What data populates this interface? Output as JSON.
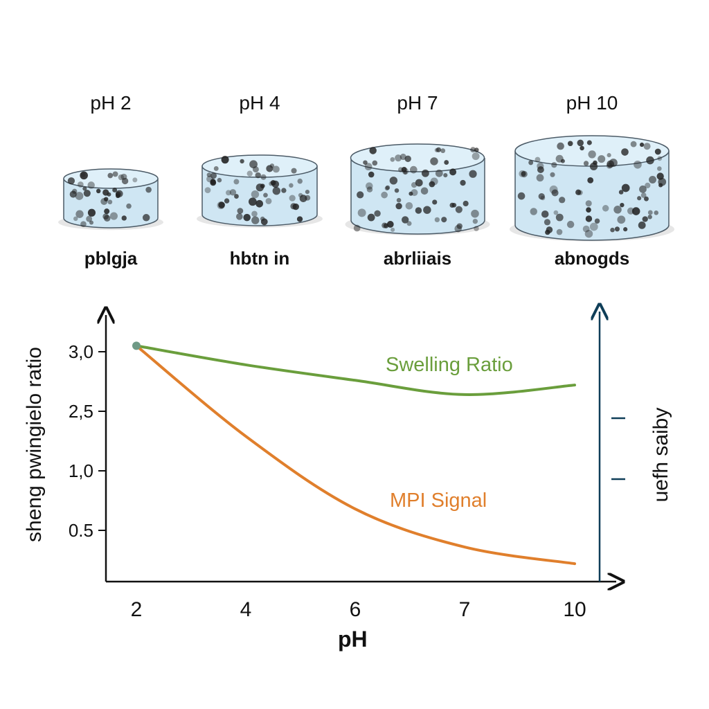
{
  "samples": [
    {
      "ph_label": "pH 2",
      "caption": "pblgja"
    },
    {
      "ph_label": "pH 4",
      "caption": "hbtn in"
    },
    {
      "ph_label": "pH 7",
      "caption": "abrliiais"
    },
    {
      "ph_label": "pH 10",
      "caption": "abnogds"
    }
  ],
  "colors": {
    "swelling": "#6a9e3c",
    "mpi": "#e07f2c",
    "right_axis": "#0f3e58",
    "gel": "#cfe6f3",
    "gel_edge": "#4b5a66"
  },
  "chart_data": {
    "type": "line",
    "xlabel": "pH",
    "ylabel": "sheng pwingielo ratio",
    "ylabel_right": "uefh saiby",
    "x_ticks": [
      "2",
      "4",
      "6",
      "7",
      "10"
    ],
    "y_ticks": [
      "3,0",
      "2,5",
      "1,0",
      "0.5"
    ],
    "y_tick_values": [
      3.0,
      2.5,
      1.0,
      0.5
    ],
    "grid": false,
    "series": [
      {
        "name": "Swelling Ratio",
        "x": [
          "2",
          "4",
          "6",
          "7",
          "10"
        ],
        "values": [
          3.05,
          2.89,
          2.76,
          2.64,
          2.72
        ]
      },
      {
        "name": "MPI Signal",
        "x": [
          "2",
          "4",
          "6",
          "7",
          "10"
        ],
        "values": [
          3.05,
          1.87,
          0.68,
          0.36,
          0.22
        ]
      }
    ]
  }
}
